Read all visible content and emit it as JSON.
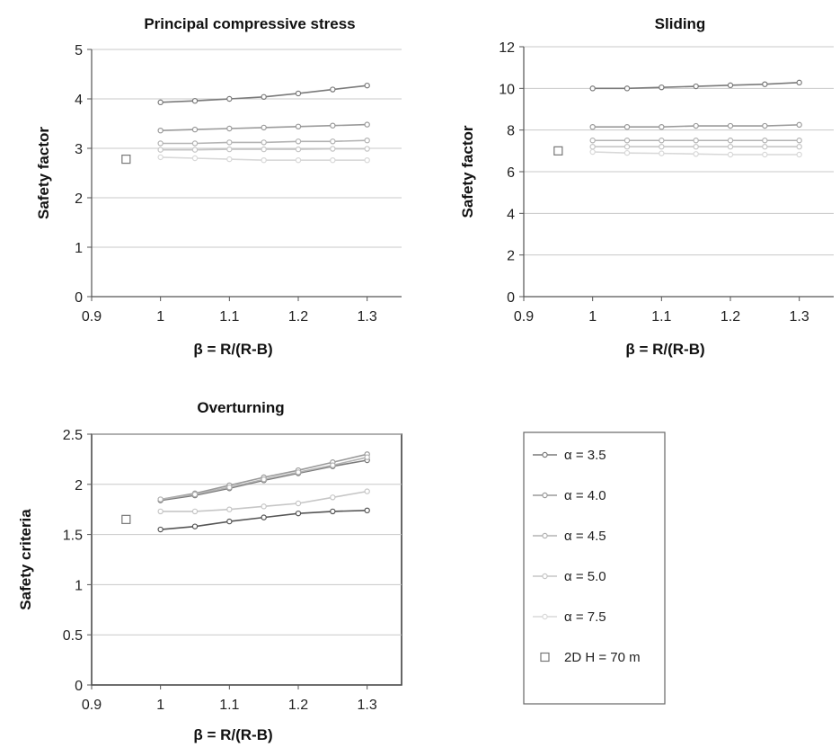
{
  "chart_data": [
    {
      "type": "line",
      "title": "Principal compressive stress",
      "xlabel": "β = R/(R-B)",
      "ylabel": "Safety factor",
      "xlim": [
        0.9,
        1.35
      ],
      "ylim": [
        0,
        5
      ],
      "xticks": [
        0.9,
        1,
        1.1,
        1.2,
        1.3
      ],
      "yticks": [
        0,
        1,
        2,
        3,
        4,
        5
      ],
      "grid": "horizontal",
      "x": [
        1.0,
        1.05,
        1.1,
        1.15,
        1.2,
        1.25,
        1.3
      ],
      "series": [
        {
          "name": "α = 3.5",
          "values": [
            3.93,
            3.96,
            4.0,
            4.04,
            4.11,
            4.19,
            4.27
          ],
          "color": "#7a7a7a"
        },
        {
          "name": "α = 4.0",
          "values": [
            3.36,
            3.38,
            3.4,
            3.42,
            3.44,
            3.46,
            3.48
          ],
          "color": "#9a9a9a"
        },
        {
          "name": "α = 4.5",
          "values": [
            3.1,
            3.1,
            3.12,
            3.12,
            3.14,
            3.14,
            3.16
          ],
          "color": "#b3b3b3"
        },
        {
          "name": "α = 5.0",
          "values": [
            2.97,
            2.97,
            2.98,
            2.98,
            2.98,
            2.99,
            2.99
          ],
          "color": "#c6c6c6"
        },
        {
          "name": "α = 7.5",
          "values": [
            2.82,
            2.8,
            2.78,
            2.76,
            2.76,
            2.76,
            2.76
          ],
          "color": "#d8d8d8"
        }
      ],
      "reference": {
        "name": "2D H = 70 m",
        "x": 0.95,
        "y": 2.78
      }
    },
    {
      "type": "line",
      "title": "Sliding",
      "xlabel": "β = R/(R-B)",
      "ylabel": "Safety factor",
      "xlim": [
        0.9,
        1.35
      ],
      "ylim": [
        0,
        12
      ],
      "xticks": [
        0.9,
        1,
        1.1,
        1.2,
        1.3
      ],
      "yticks": [
        0,
        2,
        4,
        6,
        8,
        10,
        12
      ],
      "grid": "horizontal",
      "x": [
        1.0,
        1.05,
        1.1,
        1.15,
        1.2,
        1.25,
        1.3
      ],
      "series": [
        {
          "name": "α = 3.5",
          "values": [
            10.0,
            10.0,
            10.05,
            10.1,
            10.15,
            10.2,
            10.28
          ],
          "color": "#7a7a7a"
        },
        {
          "name": "α = 4.0",
          "values": [
            8.15,
            8.15,
            8.15,
            8.2,
            8.2,
            8.2,
            8.25
          ],
          "color": "#9a9a9a"
        },
        {
          "name": "α = 4.5",
          "values": [
            7.5,
            7.5,
            7.5,
            7.5,
            7.5,
            7.5,
            7.5
          ],
          "color": "#b3b3b3"
        },
        {
          "name": "α = 5.0",
          "values": [
            7.2,
            7.2,
            7.2,
            7.2,
            7.2,
            7.2,
            7.2
          ],
          "color": "#c6c6c6"
        },
        {
          "name": "α = 7.5",
          "values": [
            6.95,
            6.9,
            6.88,
            6.85,
            6.82,
            6.82,
            6.82
          ],
          "color": "#d8d8d8"
        }
      ],
      "reference": {
        "name": "2D H = 70 m",
        "x": 0.95,
        "y": 7.0
      }
    },
    {
      "type": "line",
      "title": "Overturning",
      "xlabel": "β = R/(R-B)",
      "ylabel": "Safety criteria",
      "xlim": [
        0.9,
        1.35
      ],
      "ylim": [
        0,
        2.5
      ],
      "xticks": [
        0.9,
        1,
        1.1,
        1.2,
        1.3
      ],
      "yticks": [
        0,
        0.5,
        1,
        1.5,
        2,
        2.5
      ],
      "grid": "horizontal",
      "x": [
        1.0,
        1.05,
        1.1,
        1.15,
        1.2,
        1.25,
        1.3
      ],
      "series": [
        {
          "name": "α = 3.5",
          "values": [
            1.84,
            1.89,
            1.96,
            2.04,
            2.11,
            2.18,
            2.24
          ],
          "color": "#7a7a7a"
        },
        {
          "name": "α = 4.0",
          "values": [
            1.85,
            1.91,
            1.99,
            2.07,
            2.14,
            2.22,
            2.3
          ],
          "color": "#9a9a9a"
        },
        {
          "name": "α = 4.5",
          "values": [
            1.85,
            1.9,
            1.97,
            2.05,
            2.12,
            2.19,
            2.27
          ],
          "color": "#b3b3b3"
        },
        {
          "name": "α = 5.0",
          "values": [
            1.73,
            1.73,
            1.75,
            1.78,
            1.81,
            1.87,
            1.93
          ],
          "color": "#c6c6c6"
        },
        {
          "name": "α = 7.5",
          "values": [
            1.55,
            1.58,
            1.63,
            1.67,
            1.71,
            1.73,
            1.74
          ],
          "color": "#555555"
        }
      ],
      "reference": {
        "name": "2D H = 70 m",
        "x": 0.95,
        "y": 1.65
      }
    }
  ],
  "legend": {
    "placement": "bottom-right",
    "items": [
      {
        "label": "α = 3.5",
        "color": "#7a7a7a"
      },
      {
        "label": "α = 4.0",
        "color": "#9a9a9a"
      },
      {
        "label": "α = 4.5",
        "color": "#b3b3b3"
      },
      {
        "label": "α = 5.0",
        "color": "#c6c6c6"
      },
      {
        "label": "α = 7.5",
        "color": "#d8d8d8"
      },
      {
        "label": "2D H = 70 m",
        "color": "#777777"
      }
    ]
  }
}
